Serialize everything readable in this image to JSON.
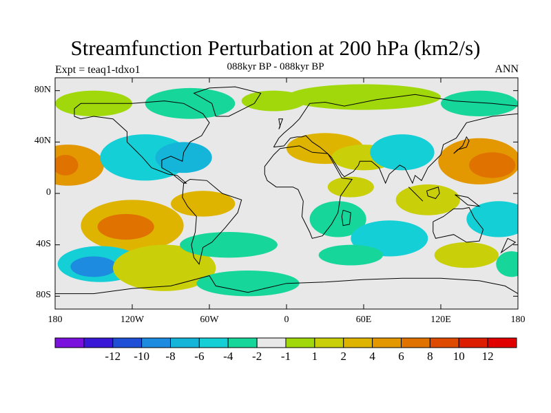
{
  "chart_data": {
    "type": "heatmap",
    "title": "Streamfunction Perturbation at 200 hPa (km2/s)",
    "subtitle": "088kyr BP - 088kyr BP",
    "left_label": "Expt = teaq1-tdxo1",
    "right_label": "ANN",
    "xlim": [
      -180,
      180
    ],
    "ylim": [
      -90,
      90
    ],
    "x_ticks": [
      {
        "value": -180,
        "label": "180"
      },
      {
        "value": -120,
        "label": "120W"
      },
      {
        "value": -60,
        "label": "60W"
      },
      {
        "value": 0,
        "label": "0"
      },
      {
        "value": 60,
        "label": "60E"
      },
      {
        "value": 120,
        "label": "120E"
      },
      {
        "value": 180,
        "label": "180"
      }
    ],
    "y_ticks": [
      {
        "value": 80,
        "label": "80N"
      },
      {
        "value": 40,
        "label": "40N"
      },
      {
        "value": 0,
        "label": "0"
      },
      {
        "value": -40,
        "label": "40S"
      },
      {
        "value": -80,
        "label": "80S"
      }
    ],
    "colorbar": {
      "colors": [
        "#7a11dc",
        "#3a18d8",
        "#1e4fd6",
        "#1d8be0",
        "#15b4d9",
        "#15cfd6",
        "#17d69a",
        "#e8e8e8",
        "#a0d80c",
        "#c9cf08",
        "#dfb400",
        "#e39700",
        "#e07200",
        "#de4a00",
        "#dc1d00",
        "#e00000"
      ],
      "labels": [
        "-12",
        "-10",
        "-8",
        "-6",
        "-4",
        "-2",
        "-1",
        "1",
        "2",
        "4",
        "6",
        "8",
        "10",
        "12"
      ]
    },
    "anomaly_regions": [
      {
        "lon": -170,
        "lat": 22,
        "rlon": 28,
        "rlat": 16,
        "level": 11
      },
      {
        "lon": -172,
        "lat": 22,
        "rlon": 10,
        "rlat": 8,
        "level": 12
      },
      {
        "lon": -110,
        "lat": 28,
        "rlon": 35,
        "rlat": 18,
        "level": 5
      },
      {
        "lon": -80,
        "lat": 28,
        "rlon": 22,
        "rlat": 12,
        "level": 4
      },
      {
        "lon": -120,
        "lat": -25,
        "rlon": 40,
        "rlat": 20,
        "level": 10
      },
      {
        "lon": -125,
        "lat": -26,
        "rlon": 22,
        "rlat": 10,
        "level": 12
      },
      {
        "lon": -145,
        "lat": -55,
        "rlon": 33,
        "rlat": 14,
        "level": 5
      },
      {
        "lon": -150,
        "lat": -57,
        "rlon": 18,
        "rlat": 8,
        "level": 3
      },
      {
        "lon": -95,
        "lat": -58,
        "rlon": 40,
        "rlat": 18,
        "level": 9
      },
      {
        "lon": -65,
        "lat": -8,
        "rlon": 25,
        "rlat": 10,
        "level": 10
      },
      {
        "lon": -45,
        "lat": -40,
        "rlon": 38,
        "rlat": 10,
        "level": 6
      },
      {
        "lon": -30,
        "lat": -70,
        "rlon": 40,
        "rlat": 10,
        "level": 6
      },
      {
        "lon": -150,
        "lat": 70,
        "rlon": 30,
        "rlat": 10,
        "level": 8
      },
      {
        "lon": -75,
        "lat": 70,
        "rlon": 35,
        "rlat": 12,
        "level": 6
      },
      {
        "lon": -10,
        "lat": 72,
        "rlon": 25,
        "rlat": 8,
        "level": 8
      },
      {
        "lon": 60,
        "lat": 75,
        "rlon": 60,
        "rlat": 10,
        "level": 8
      },
      {
        "lon": 30,
        "lat": 35,
        "rlon": 30,
        "rlat": 12,
        "level": 10
      },
      {
        "lon": 60,
        "lat": 28,
        "rlon": 25,
        "rlat": 10,
        "level": 9
      },
      {
        "lon": 90,
        "lat": 32,
        "rlon": 25,
        "rlat": 14,
        "level": 5
      },
      {
        "lon": 50,
        "lat": 5,
        "rlon": 18,
        "rlat": 8,
        "level": 9
      },
      {
        "lon": 40,
        "lat": -20,
        "rlon": 22,
        "rlat": 14,
        "level": 6
      },
      {
        "lon": 80,
        "lat": -35,
        "rlon": 30,
        "rlat": 14,
        "level": 5
      },
      {
        "lon": 50,
        "lat": -48,
        "rlon": 25,
        "rlat": 8,
        "level": 6
      },
      {
        "lon": 110,
        "lat": -5,
        "rlon": 25,
        "rlat": 12,
        "level": 9
      },
      {
        "lon": 150,
        "lat": 25,
        "rlon": 32,
        "rlat": 18,
        "level": 11
      },
      {
        "lon": 160,
        "lat": 22,
        "rlon": 18,
        "rlat": 10,
        "level": 12
      },
      {
        "lon": 165,
        "lat": -20,
        "rlon": 25,
        "rlat": 14,
        "level": 5
      },
      {
        "lon": 140,
        "lat": -48,
        "rlon": 25,
        "rlat": 10,
        "level": 9
      },
      {
        "lon": 175,
        "lat": -55,
        "rlon": 12,
        "rlat": 10,
        "level": 6
      },
      {
        "lon": 150,
        "lat": 70,
        "rlon": 30,
        "rlat": 10,
        "level": 6
      }
    ]
  }
}
